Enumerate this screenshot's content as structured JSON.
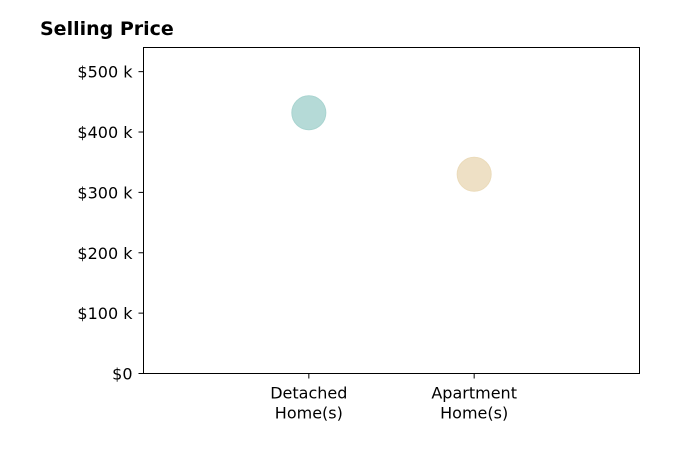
{
  "chart_data": {
    "type": "scatter",
    "title": "Selling Price",
    "xlabel": "",
    "ylabel": "",
    "categories": [
      [
        "Detached",
        "Home(s)"
      ],
      [
        "Apartment",
        "Home(s)"
      ]
    ],
    "ylim": [
      0,
      540000
    ],
    "yticks": [
      {
        "value": 0,
        "label": "$0"
      },
      {
        "value": 100000,
        "label": "$100 k"
      },
      {
        "value": 200000,
        "label": "$200 k"
      },
      {
        "value": 300000,
        "label": "$300 k"
      },
      {
        "value": 400000,
        "label": "$400 k"
      },
      {
        "value": 500000,
        "label": "$500 k"
      }
    ],
    "points": [
      {
        "category_index": 0,
        "value": 432000,
        "color": "#b2dfdb"
      },
      {
        "category_index": 1,
        "value": 330000,
        "color": "#f7e6c4"
      }
    ],
    "grid": false,
    "legend": "none"
  }
}
